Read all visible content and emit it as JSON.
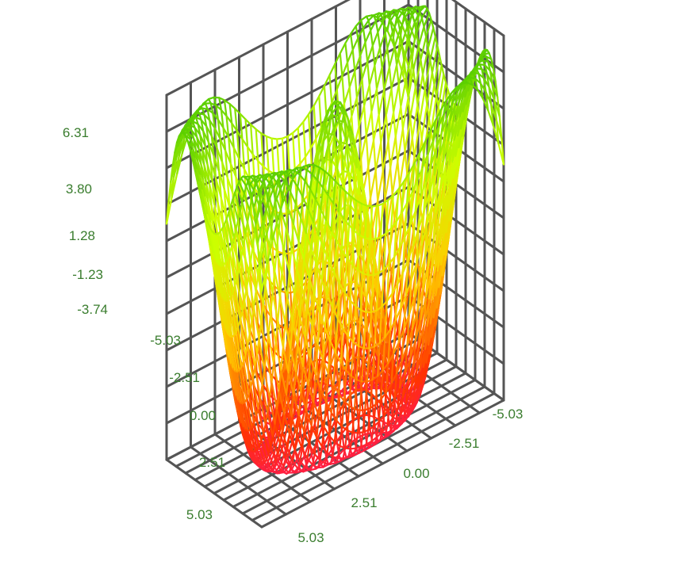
{
  "chart_data": {
    "type": "surface",
    "title": "",
    "xlabel": "",
    "ylabel": "",
    "zlabel": "",
    "x_ticks": [
      "5.03",
      "2.51",
      "0.00",
      "-2.51",
      "-5.03"
    ],
    "y_ticks": [
      "5.03",
      "2.51",
      "0.00",
      "-2.51",
      "-5.03"
    ],
    "z_ticks": [
      "6.31",
      "3.80",
      "1.28",
      "-1.23",
      "-3.74"
    ],
    "xlim": [
      -5.03,
      5.03
    ],
    "ylim": [
      -5.03,
      5.03
    ],
    "zlim": [
      -5.03,
      6.31
    ],
    "grid": true,
    "legend": "none",
    "mesh": "wireframe",
    "colormap": [
      "#ff00aa",
      "#ff3300",
      "#ffcc00",
      "#ccff00",
      "#55cc00"
    ],
    "surface_shape": "radial ripple with central raised ring and raised corners",
    "grid_color": "#555555",
    "tick_color": "#3a7d2e"
  }
}
